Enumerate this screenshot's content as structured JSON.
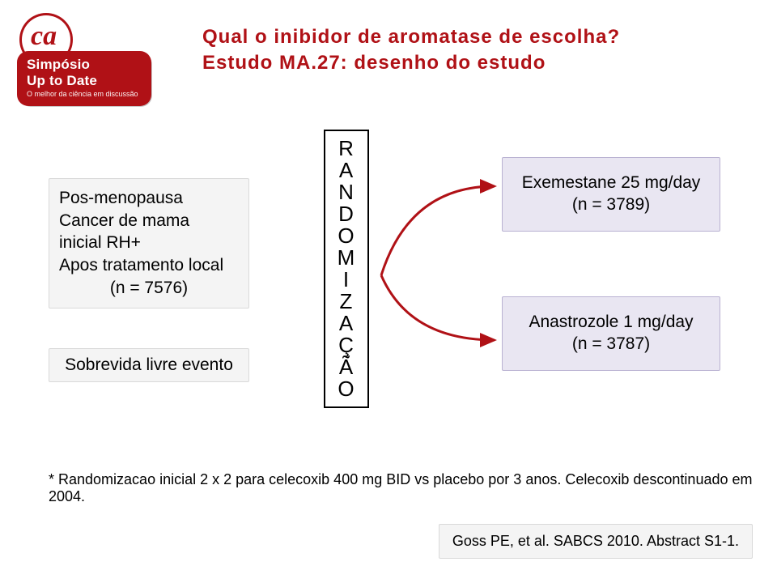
{
  "logo": {
    "ca_text": "ca",
    "simposio": "Simpósio",
    "uptodate": "Up to Date",
    "subtitle": "O melhor da ciência em discussão",
    "badge_bg": "#b01116",
    "badge_shadow": "#c9c9c9",
    "ca_circle_bg": "#ffffff",
    "ca_color": "#b01116"
  },
  "title": {
    "line1": "Qual o inibidor de aromatase de escolha?",
    "line2": "Estudo MA.27: desenho do estudo",
    "color": "#b01116"
  },
  "patient_box": {
    "line1": "Pos-menopausa",
    "line2": "Cancer de mama",
    "line3": "inicial RH+",
    "line4": "Apos tratamento local",
    "line5": "(n = 7576)",
    "bg": "#f4f4f4",
    "border": "#d9d9d9",
    "text": "#000000"
  },
  "survival_box": {
    "text": "Sobrevida livre evento",
    "bg": "#f4f4f4",
    "border": "#d9d9d9",
    "text_color": "#000000"
  },
  "rand_box": {
    "letters": [
      "R",
      "A",
      "N",
      "D",
      "O",
      "M",
      "I",
      "Z",
      "A",
      "Ç",
      "Ã",
      "O"
    ],
    "border": "#000000",
    "text_color": "#000000"
  },
  "arrow": {
    "stroke": "#b01116",
    "stroke_width": 3
  },
  "arm1": {
    "line1": "Exemestane 25 mg/day",
    "line2": "(n = 3789)",
    "bg": "#e9e6f2",
    "border": "#b9b2d2",
    "text_color": "#000000"
  },
  "arm2": {
    "line1": "Anastrozole 1 mg/day",
    "line2": "(n = 3787)",
    "bg": "#e9e6f2",
    "border": "#b9b2d2",
    "text_color": "#000000"
  },
  "footnote": {
    "text": "* Randomizacao inicial 2 x 2 para celecoxib 400 mg BID vs placebo por 3 anos. Celecoxib descontinuado em 2004.",
    "color": "#000000"
  },
  "citation": {
    "text": "Goss PE, et al. SABCS 2010. Abstract S1-1.",
    "bg": "#f4f4f4",
    "border": "#d9d9d9",
    "text_color": "#000000"
  }
}
